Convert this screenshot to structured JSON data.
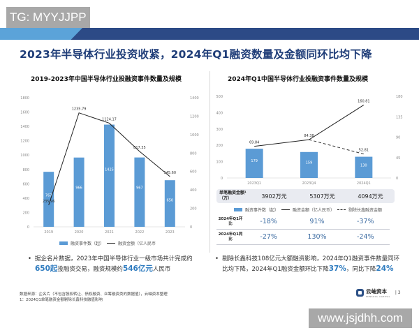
{
  "overlay": {
    "top_left_watermark": "TG: MYYJJPP",
    "bottom_right_watermark": "www.jsjdhh.com"
  },
  "page": {
    "title": "2023年半导体行业投资收紧，2024年Q1融资数量及金额同环比均下降",
    "page_number": "3",
    "colors": {
      "header_dark": "#2c4a86",
      "header_light": "#5ba3d9",
      "title": "#1f3d78",
      "bar": "#5b9bd5",
      "highlight": "#2e7bbf"
    }
  },
  "left_panel": {
    "chart_title": "2019-2023年中国半导体行业投融资事件数量及规模",
    "legend": {
      "bar_label": "融资事件数（起）",
      "line_label": "融资金额（亿人民币"
    },
    "bullet": {
      "part1": "据企名片数据，2023年中国半导体行业一级市场共计完成约",
      "highlight1": "650起",
      "part2": "投融资交易，融资规模约",
      "highlight2": "546亿元",
      "part3": "人民币"
    },
    "source_line1": "数据来源：企名片（不包含股权转让、债权融资、众筹融资类的数据值），云岫资本整理",
    "source_line2": "1：2024Q1单笔融资金额剔除长鑫科技融值影响"
  },
  "right_panel": {
    "chart_title": "2024年Q1中国半导体行业投融资事件数量及规模",
    "legend": {
      "bar_label": "融资事件数（起）",
      "line_label": "融资金额（亿人民币）",
      "dash_label": "剔除长鑫融资金额"
    },
    "avg_amount": {
      "label": "单笔融资金额¹（万）",
      "values": [
        "3902万元",
        "5307万元",
        "4094万元"
      ]
    },
    "qoq": {
      "label": "2024年Q1环比",
      "values": [
        "-18%",
        "91%",
        "-37%"
      ]
    },
    "yoy": {
      "label": "2024年Q1同比",
      "values": [
        "-27%",
        "130%",
        "-24%"
      ]
    },
    "bullet": {
      "part1": "剔除长鑫科技108亿元大额融资影响，2024年Q1融资事件数量同环比均下降，2024年Q1融资金额环比下降",
      "highlight1": "37%",
      "part2": "，同比下降",
      "highlight2": "24%"
    }
  },
  "logo": {
    "name": "云岫资本",
    "sub": "WINSOUL CAPITAL"
  },
  "chart_data": [
    {
      "type": "bar",
      "title": "2019-2023年中国半导体行业投融资事件数量及规模",
      "categories": [
        "2019",
        "2020",
        "2021",
        "2022",
        "2023"
      ],
      "series": [
        {
          "name": "融资事件数（起）",
          "type": "bar",
          "axis": "left",
          "values": [
            767,
            966,
            1425,
            967,
            650
          ]
        },
        {
          "name": "融资金额（亿人民币）",
          "type": "line",
          "axis": "right",
          "values": [
            235.96,
            1235.79,
            1124.17,
            817.35,
            545.6
          ]
        }
      ],
      "left_axis": {
        "ticks": [
          0,
          200,
          400,
          600,
          800,
          1000,
          1200,
          1400,
          1600,
          1800
        ],
        "range": [
          0,
          1800
        ]
      },
      "right_axis": {
        "ticks": [
          0,
          200,
          400,
          600,
          800,
          1000,
          1200,
          1400
        ],
        "range": [
          0,
          1400
        ]
      },
      "xlabel": "",
      "ylabel": "",
      "legend_position": "bottom",
      "grid": false
    },
    {
      "type": "bar",
      "title": "2024年Q1中国半导体行业投融资事件数量及规模",
      "categories": [
        "2023Q1",
        "2023Q4",
        "2024Q1"
      ],
      "series": [
        {
          "name": "融资事件数（起）",
          "type": "bar",
          "axis": "left",
          "values": [
            179,
            159,
            130
          ]
        },
        {
          "name": "融资金额（亿人民币）",
          "type": "line",
          "axis": "right",
          "values": [
            69.84,
            84.38,
            160.81
          ]
        },
        {
          "name": "剔除长鑫融资金额",
          "type": "dashed-line",
          "axis": "right",
          "values": [
            null,
            84.38,
            52.81
          ]
        }
      ],
      "left_axis": {
        "ticks": [
          0,
          100,
          200,
          300,
          400,
          500
        ],
        "range": [
          0,
          500
        ]
      },
      "right_axis": {
        "ticks": [
          0,
          45,
          90,
          135,
          180
        ],
        "range": [
          0,
          180
        ]
      },
      "xlabel": "",
      "ylabel": "",
      "legend_position": "bottom",
      "grid": false
    }
  ]
}
